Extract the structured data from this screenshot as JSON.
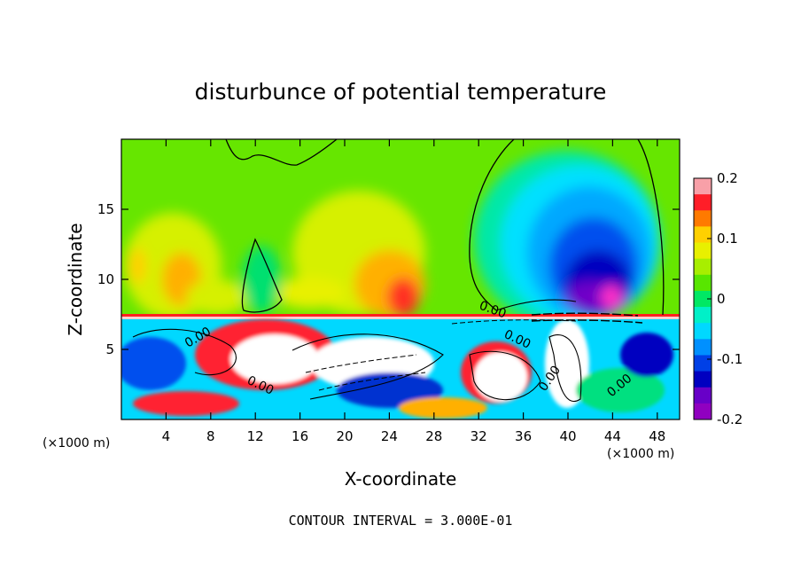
{
  "chart_data": {
    "type": "heatmap",
    "title": "disturbunce of potential temperature",
    "xlabel": "X-coordinate",
    "ylabel": "Z-coordinate",
    "x_unit_label": "(×1000 m)",
    "x_unit_label_right": "(×1000 m)",
    "xlim": [
      0,
      50
    ],
    "ylim": [
      0,
      20
    ],
    "xticks": [
      4,
      8,
      12,
      16,
      20,
      24,
      28,
      32,
      36,
      40,
      44,
      48
    ],
    "yticks": [
      5,
      10,
      15
    ],
    "colorbar": {
      "range": [
        -0.2,
        0.2
      ],
      "ticks": [
        "0.2",
        "0.1",
        "0",
        "-0.1",
        "-0.2"
      ],
      "colors": [
        "#f8a0a8",
        "#ff1e28",
        "#ff7a00",
        "#ffd000",
        "#e8f000",
        "#a8ee00",
        "#58e600",
        "#00e864",
        "#00f0c8",
        "#00d8ff",
        "#0090ff",
        "#0040e6",
        "#0000c0",
        "#6800c8",
        "#9000c0"
      ]
    },
    "contour_interval_text": "CONTOUR INTERVAL = 3.000E-01",
    "contour_labels": [
      "0.00",
      "0.00",
      "0.00",
      "0.00",
      "0.00",
      "0.00"
    ],
    "boundary_z": 7.2
  }
}
